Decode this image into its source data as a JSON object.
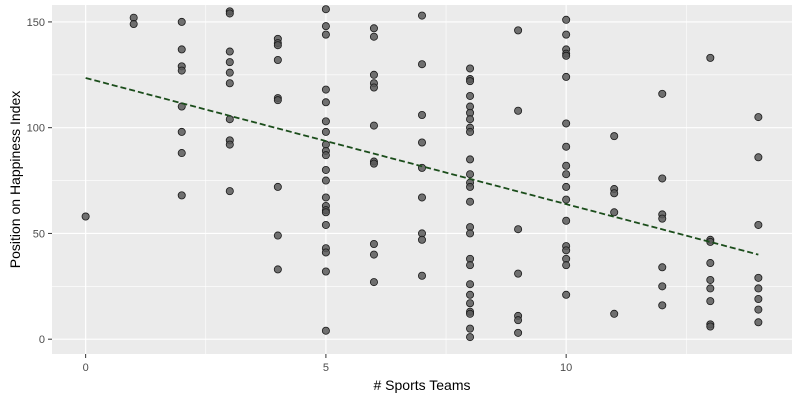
{
  "chart_data": {
    "type": "scatter",
    "title": "",
    "xlabel": "# Sports Teams",
    "ylabel": "Position on Happiness Index",
    "xlim": [
      -0.7,
      14.7
    ],
    "ylim": [
      -7,
      158
    ],
    "x_ticks": [
      0,
      5,
      10
    ],
    "x_tick_labels": [
      "0",
      "5",
      "10"
    ],
    "y_ticks": [
      0,
      50,
      100,
      150
    ],
    "y_tick_labels": [
      "0",
      "50",
      "100",
      "150"
    ],
    "grid": true,
    "legend": "none",
    "colors": {
      "panel": "#ebebeb",
      "grid": "#ffffff",
      "point_fill": "#595959",
      "point_stroke": "#1a1a1a",
      "trend": "#1b4d1b",
      "tick_text": "#4d4d4d",
      "tick_mark": "#333333"
    },
    "points": [
      [
        0,
        58
      ],
      [
        1,
        152
      ],
      [
        1,
        149
      ],
      [
        2,
        150
      ],
      [
        2,
        137
      ],
      [
        2,
        129
      ],
      [
        2,
        127
      ],
      [
        2,
        110
      ],
      [
        2,
        98
      ],
      [
        2,
        88
      ],
      [
        2,
        68
      ],
      [
        3,
        155
      ],
      [
        3,
        154
      ],
      [
        3,
        136
      ],
      [
        3,
        131
      ],
      [
        3,
        126
      ],
      [
        3,
        121
      ],
      [
        3,
        104
      ],
      [
        3,
        94
      ],
      [
        3,
        92
      ],
      [
        3,
        70
      ],
      [
        4,
        142
      ],
      [
        4,
        140
      ],
      [
        4,
        139
      ],
      [
        4,
        132
      ],
      [
        4,
        114
      ],
      [
        4,
        113
      ],
      [
        4,
        72
      ],
      [
        4,
        49
      ],
      [
        4,
        33
      ],
      [
        5,
        156
      ],
      [
        5,
        148
      ],
      [
        5,
        144
      ],
      [
        5,
        118
      ],
      [
        5,
        112
      ],
      [
        5,
        103
      ],
      [
        5,
        98
      ],
      [
        5,
        92
      ],
      [
        5,
        89
      ],
      [
        5,
        87
      ],
      [
        5,
        80
      ],
      [
        5,
        75
      ],
      [
        5,
        67
      ],
      [
        5,
        63
      ],
      [
        5,
        61
      ],
      [
        5,
        60
      ],
      [
        5,
        54
      ],
      [
        5,
        43
      ],
      [
        5,
        41
      ],
      [
        5,
        32
      ],
      [
        5,
        4
      ],
      [
        6,
        147
      ],
      [
        6,
        143
      ],
      [
        6,
        125
      ],
      [
        6,
        121
      ],
      [
        6,
        119
      ],
      [
        6,
        101
      ],
      [
        6,
        84
      ],
      [
        6,
        83
      ],
      [
        6,
        45
      ],
      [
        6,
        40
      ],
      [
        6,
        27
      ],
      [
        7,
        153
      ],
      [
        7,
        130
      ],
      [
        7,
        106
      ],
      [
        7,
        93
      ],
      [
        7,
        81
      ],
      [
        7,
        67
      ],
      [
        7,
        50
      ],
      [
        7,
        47
      ],
      [
        7,
        30
      ],
      [
        8,
        128
      ],
      [
        8,
        123
      ],
      [
        8,
        122
      ],
      [
        8,
        115
      ],
      [
        8,
        110
      ],
      [
        8,
        107
      ],
      [
        8,
        104
      ],
      [
        8,
        100
      ],
      [
        8,
        98
      ],
      [
        8,
        85
      ],
      [
        8,
        78
      ],
      [
        8,
        74
      ],
      [
        8,
        72
      ],
      [
        8,
        65
      ],
      [
        8,
        53
      ],
      [
        8,
        50
      ],
      [
        8,
        38
      ],
      [
        8,
        35
      ],
      [
        8,
        26
      ],
      [
        8,
        21
      ],
      [
        8,
        17
      ],
      [
        8,
        13
      ],
      [
        8,
        12
      ],
      [
        8,
        5
      ],
      [
        8,
        1
      ],
      [
        9,
        146
      ],
      [
        9,
        108
      ],
      [
        9,
        52
      ],
      [
        9,
        31
      ],
      [
        9,
        11
      ],
      [
        9,
        9
      ],
      [
        9,
        3
      ],
      [
        10,
        151
      ],
      [
        10,
        144
      ],
      [
        10,
        137
      ],
      [
        10,
        135
      ],
      [
        10,
        134
      ],
      [
        10,
        124
      ],
      [
        10,
        102
      ],
      [
        10,
        91
      ],
      [
        10,
        82
      ],
      [
        10,
        78
      ],
      [
        10,
        72
      ],
      [
        10,
        66
      ],
      [
        10,
        56
      ],
      [
        10,
        44
      ],
      [
        10,
        42
      ],
      [
        10,
        38
      ],
      [
        10,
        35
      ],
      [
        10,
        21
      ],
      [
        11,
        96
      ],
      [
        11,
        71
      ],
      [
        11,
        69
      ],
      [
        11,
        60
      ],
      [
        11,
        12
      ],
      [
        12,
        116
      ],
      [
        12,
        76
      ],
      [
        12,
        59
      ],
      [
        12,
        57
      ],
      [
        12,
        34
      ],
      [
        12,
        25
      ],
      [
        12,
        16
      ],
      [
        13,
        133
      ],
      [
        13,
        47
      ],
      [
        13,
        46
      ],
      [
        13,
        36
      ],
      [
        13,
        28
      ],
      [
        13,
        24
      ],
      [
        13,
        18
      ],
      [
        13,
        7
      ],
      [
        13,
        6
      ],
      [
        14,
        105
      ],
      [
        14,
        86
      ],
      [
        14,
        54
      ],
      [
        14,
        29
      ],
      [
        14,
        24
      ],
      [
        14,
        19
      ],
      [
        14,
        14
      ],
      [
        14,
        8
      ]
    ],
    "trend_line": {
      "style": "dashed",
      "x": [
        0,
        14
      ],
      "y": [
        123.5,
        40
      ]
    }
  }
}
